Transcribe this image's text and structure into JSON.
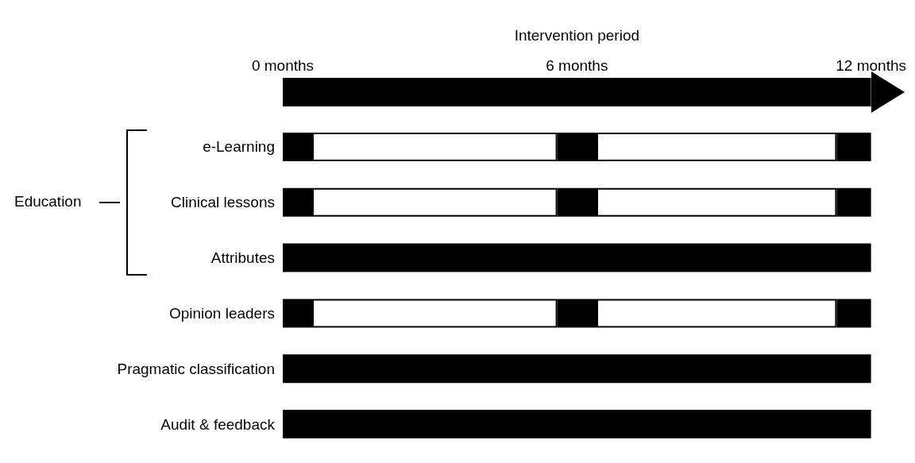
{
  "chart_data": {
    "type": "bar",
    "orientation": "horizontal",
    "stacked": true,
    "xlabel": "Intervention period",
    "categories": [
      "e-Learning",
      "Clinical lessons",
      "Attributes",
      "Opinion leaders",
      "Pragmatic classification",
      "Audit & feedback"
    ],
    "series": [
      {
        "color": "#000000",
        "values": [
          0.6,
          0.6,
          12,
          0.6,
          12,
          12
        ]
      },
      {
        "color": "#ffffff",
        "values": [
          5,
          5,
          null,
          5,
          null,
          null
        ]
      },
      {
        "color": "#000000",
        "values": [
          0.8,
          0.8,
          null,
          0.8,
          null,
          null
        ]
      },
      {
        "color": "#ffffff",
        "values": [
          4.9,
          4.9,
          null,
          4.9,
          null,
          null
        ]
      },
      {
        "color": "#000000",
        "values": [
          0.7,
          0.7,
          null,
          0.7,
          null,
          null
        ]
      }
    ],
    "xlim": [
      0,
      12
    ],
    "xticks": [
      {
        "value": 0,
        "label": "0 months"
      },
      {
        "value": 6,
        "label": "6 months"
      },
      {
        "value": 12,
        "label": "12 months"
      }
    ],
    "annotations": [
      "Education"
    ]
  }
}
